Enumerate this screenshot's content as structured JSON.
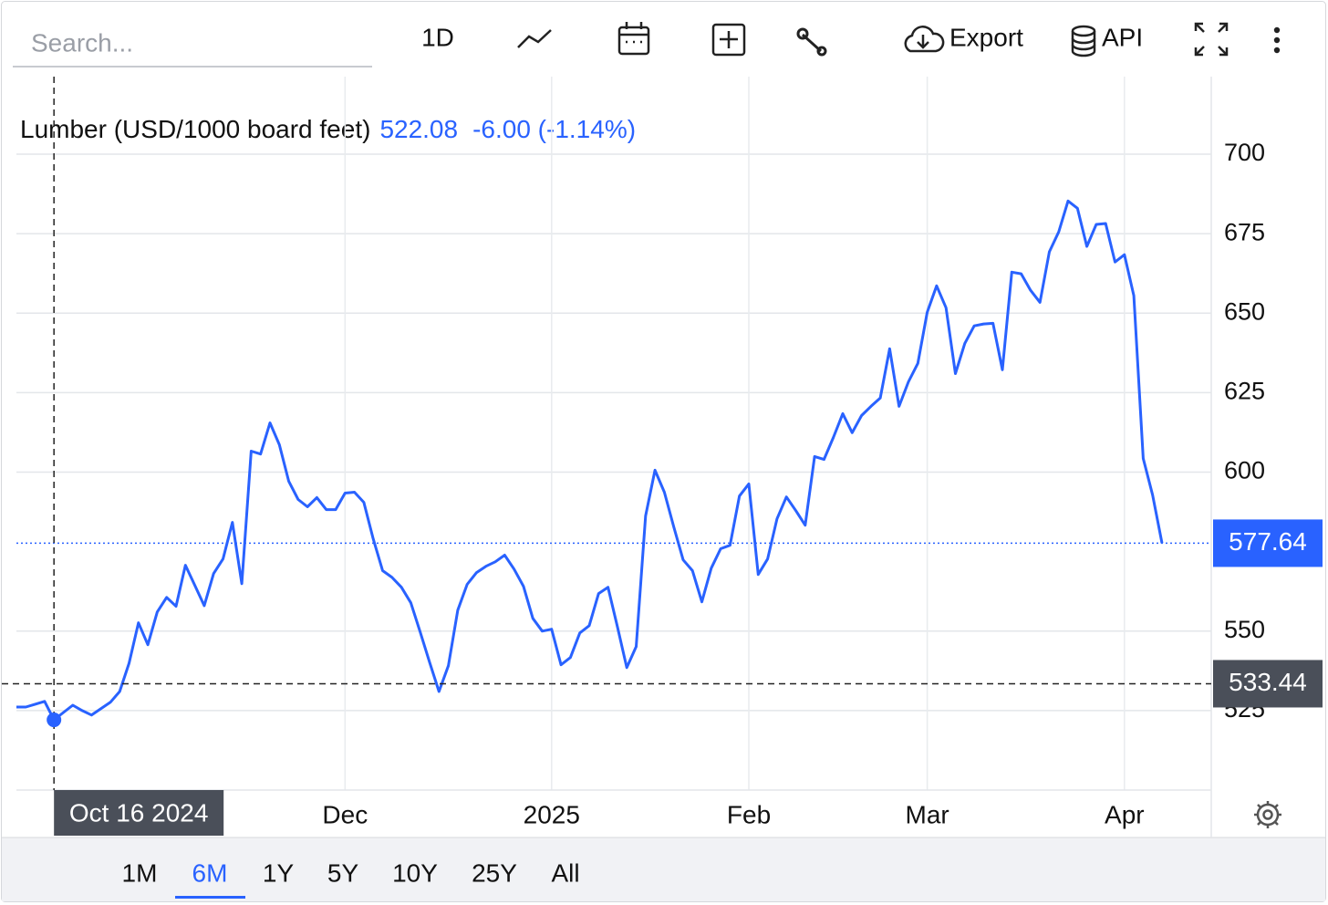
{
  "ui": {
    "search_placeholder": "Search...",
    "interval": "1D",
    "export": "Export",
    "api": "API",
    "ranges": [
      "1M",
      "6M",
      "1Y",
      "5Y",
      "10Y",
      "25Y",
      "All"
    ],
    "active_range": "6M"
  },
  "chart_data": {
    "type": "line",
    "title": "Lumber (USD/1000 board feet)",
    "change": "-6.00 (-1.14%)",
    "categories": [
      null,
      null,
      null,
      null,
      "Oct 16 2024",
      null,
      null,
      null,
      null,
      null,
      null,
      null,
      null,
      null,
      null,
      null,
      null,
      null,
      null,
      null,
      null,
      null,
      null,
      null,
      null,
      null,
      null,
      null,
      null,
      null,
      null,
      null,
      null,
      null,
      null,
      "Dec",
      null,
      null,
      null,
      null,
      null,
      null,
      null,
      null,
      null,
      null,
      null,
      null,
      null,
      null,
      null,
      null,
      null,
      null,
      null,
      null,
      null,
      "2025",
      null,
      null,
      null,
      null,
      null,
      null,
      null,
      null,
      null,
      null,
      null,
      null,
      null,
      null,
      null,
      null,
      null,
      null,
      null,
      null,
      "Feb",
      null,
      null,
      null,
      null,
      null,
      null,
      null,
      null,
      null,
      null,
      null,
      null,
      null,
      null,
      null,
      null,
      null,
      null,
      "Mar",
      null,
      null,
      null,
      null,
      null,
      null,
      null,
      null,
      null,
      null,
      null,
      null,
      null,
      null,
      null,
      null,
      null,
      null,
      null,
      null,
      "Apr",
      null,
      null,
      null,
      null
    ],
    "series": [
      {
        "color": "#2962ff",
        "values": [
          526.1,
          526.1,
          527.0,
          527.9,
          522.08,
          524.4,
          526.7,
          525.0,
          523.6,
          525.6,
          527.6,
          531.0,
          539.9,
          552.6,
          545.7,
          556.0,
          560.6,
          557.8,
          570.7,
          564.4,
          558.0,
          568.1,
          572.7,
          584.2,
          564.9,
          606.6,
          605.7,
          615.5,
          608.6,
          597.1,
          591.4,
          589.1,
          592.0,
          588.2,
          588.2,
          593.4,
          593.7,
          590.5,
          579.0,
          569.0,
          566.9,
          563.8,
          558.9,
          549.7,
          540.2,
          531.0,
          539.1,
          556.6,
          564.7,
          568.4,
          570.4,
          571.8,
          573.9,
          569.5,
          564.1,
          554.0,
          550.0,
          550.6,
          539.4,
          541.7,
          549.4,
          551.7,
          561.8,
          563.8,
          551.4,
          538.5,
          545.1,
          586.2,
          600.6,
          593.7,
          582.8,
          572.4,
          569.0,
          559.2,
          569.8,
          575.9,
          577.0,
          592.5,
          596.3,
          567.8,
          572.7,
          585.3,
          592.2,
          587.9,
          583.3,
          604.9,
          604.0,
          610.9,
          618.4,
          612.4,
          617.8,
          620.7,
          623.3,
          638.8,
          620.7,
          628.4,
          634.2,
          650.3,
          658.6,
          651.7,
          631.0,
          640.5,
          646.0,
          646.6,
          646.8,
          632.2,
          662.9,
          662.4,
          657.2,
          653.4,
          669.3,
          675.6,
          685.3,
          683.0,
          671.0,
          677.9,
          678.2,
          666.1,
          668.4,
          655.5,
          604.3,
          592.8,
          577.64
        ]
      }
    ],
    "ylim": [
      500,
      724.4
    ],
    "yticks": [
      525,
      550,
      600,
      625,
      650,
      675,
      700
    ],
    "grid": true,
    "hover_index": 4,
    "crosshair_y": 533.44
  }
}
